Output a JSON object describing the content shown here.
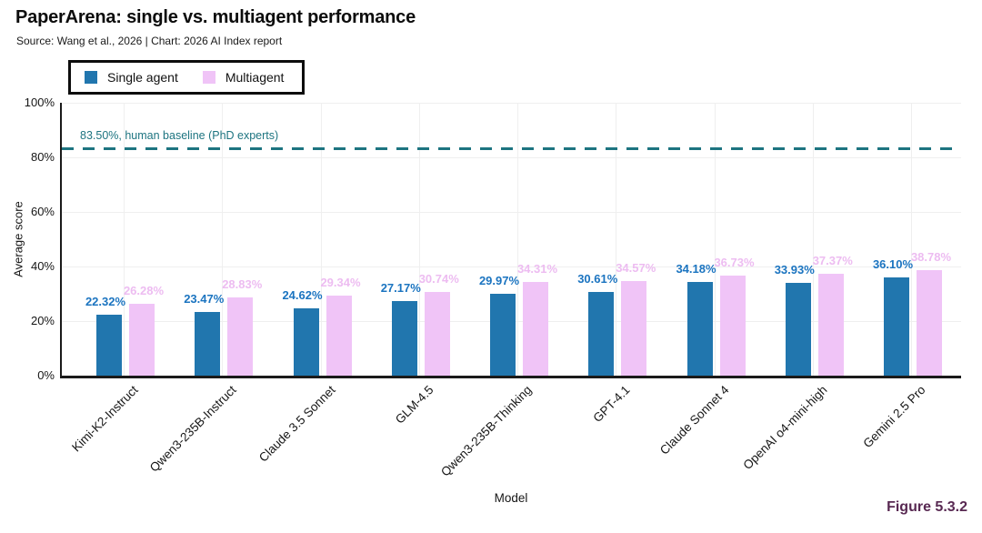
{
  "header": {
    "title": "PaperArena: single vs. multiagent performance",
    "subtitle": "Source: Wang et al., 2026 | Chart: 2026 AI Index report"
  },
  "legend": {
    "items": [
      {
        "label": "Single agent",
        "color": "#2176ae"
      },
      {
        "label": "Multiagent",
        "color": "#f0c4f7"
      }
    ]
  },
  "figure_caption": "Figure 5.3.2",
  "chart_data": {
    "type": "bar",
    "title": "PaperArena: single vs. multiagent performance",
    "categories": [
      "Kimi-K2-Instruct",
      "Qwen3-235B-Instruct",
      "Claude 3.5 Sonnet",
      "GLM-4.5",
      "Qwen3-235B-Thinking",
      "GPT-4.1",
      "Claude Sonnet 4",
      "OpenAI o4-mini-high",
      "Gemini 2.5 Pro"
    ],
    "series": [
      {
        "name": "Single agent",
        "color": "#2176ae",
        "label_color": "#1b74c0",
        "values": [
          22.32,
          23.47,
          24.62,
          27.17,
          29.97,
          30.61,
          34.18,
          33.93,
          36.1
        ]
      },
      {
        "name": "Multiagent",
        "color": "#f0c4f7",
        "label_color": "#edbcf1",
        "values": [
          26.28,
          28.83,
          29.34,
          30.74,
          34.31,
          34.57,
          36.73,
          37.37,
          38.78
        ]
      }
    ],
    "xlabel": "Model",
    "ylabel": "Average score",
    "ylim": [
      0,
      100
    ],
    "yticks": [
      0,
      20,
      40,
      60,
      80,
      100
    ],
    "ytick_suffix": "%",
    "grid": true,
    "legend_position": "top-left",
    "baseline": {
      "value": 83.5,
      "label": "83.50%, human baseline (PhD experts)",
      "color": "#1d7480"
    }
  },
  "colors": {
    "axis": "#1a1a1a",
    "grid": "#efefef",
    "figure_caption": "#582952",
    "background": "#ffffff"
  }
}
